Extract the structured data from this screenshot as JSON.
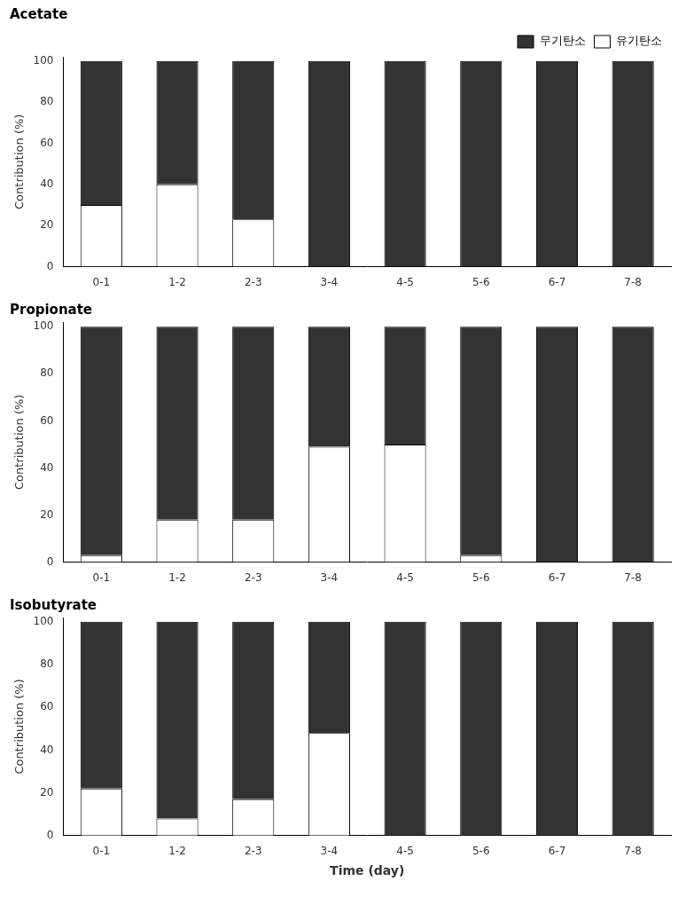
{
  "chart_data": [
    {
      "type": "bar",
      "title": "Acetate",
      "stacked": true,
      "grid": false,
      "legend": "upper right",
      "categories": [
        "0-1",
        "1-2",
        "2-3",
        "3-4",
        "4-5",
        "5-6",
        "6-7",
        "7-8"
      ],
      "ylabel": "Contribution (%)",
      "ylim": [
        0,
        102
      ],
      "yticks": [
        0,
        20,
        40,
        60,
        80,
        100
      ],
      "series": [
        {
          "name": "유기탄소",
          "color": "#ffffff",
          "values": [
            30,
            40,
            23,
            0,
            0,
            0,
            0,
            0
          ]
        },
        {
          "name": "무기탄소",
          "color": "#333333",
          "values": [
            70,
            60,
            77,
            100,
            100,
            100,
            100,
            100
          ]
        }
      ]
    },
    {
      "type": "bar",
      "title": "Propionate",
      "stacked": true,
      "grid": false,
      "categories": [
        "0-1",
        "1-2",
        "2-3",
        "3-4",
        "4-5",
        "5-6",
        "6-7",
        "7-8"
      ],
      "ylabel": "Contribution (%)",
      "ylim": [
        0,
        102
      ],
      "yticks": [
        0,
        20,
        40,
        60,
        80,
        100
      ],
      "series": [
        {
          "name": "유기탄소",
          "color": "#ffffff",
          "values": [
            3,
            18,
            18,
            49,
            50,
            3,
            0,
            0
          ]
        },
        {
          "name": "무기탄소",
          "color": "#333333",
          "values": [
            97,
            82,
            82,
            51,
            50,
            97,
            100,
            100
          ]
        }
      ]
    },
    {
      "type": "bar",
      "title": "Isobutyrate",
      "stacked": true,
      "grid": false,
      "categories": [
        "0-1",
        "1-2",
        "2-3",
        "3-4",
        "4-5",
        "5-6",
        "6-7",
        "7-8"
      ],
      "xlabel": "Time (day)",
      "ylabel": "Contribution (%)",
      "ylim": [
        0,
        102
      ],
      "yticks": [
        0,
        20,
        40,
        60,
        80,
        100
      ],
      "series": [
        {
          "name": "유기탄소",
          "color": "#ffffff",
          "values": [
            22,
            8,
            17,
            48,
            0,
            0,
            0,
            0
          ]
        },
        {
          "name": "무기탄소",
          "color": "#333333",
          "values": [
            78,
            92,
            83,
            52,
            100,
            100,
            100,
            100
          ]
        }
      ]
    }
  ]
}
